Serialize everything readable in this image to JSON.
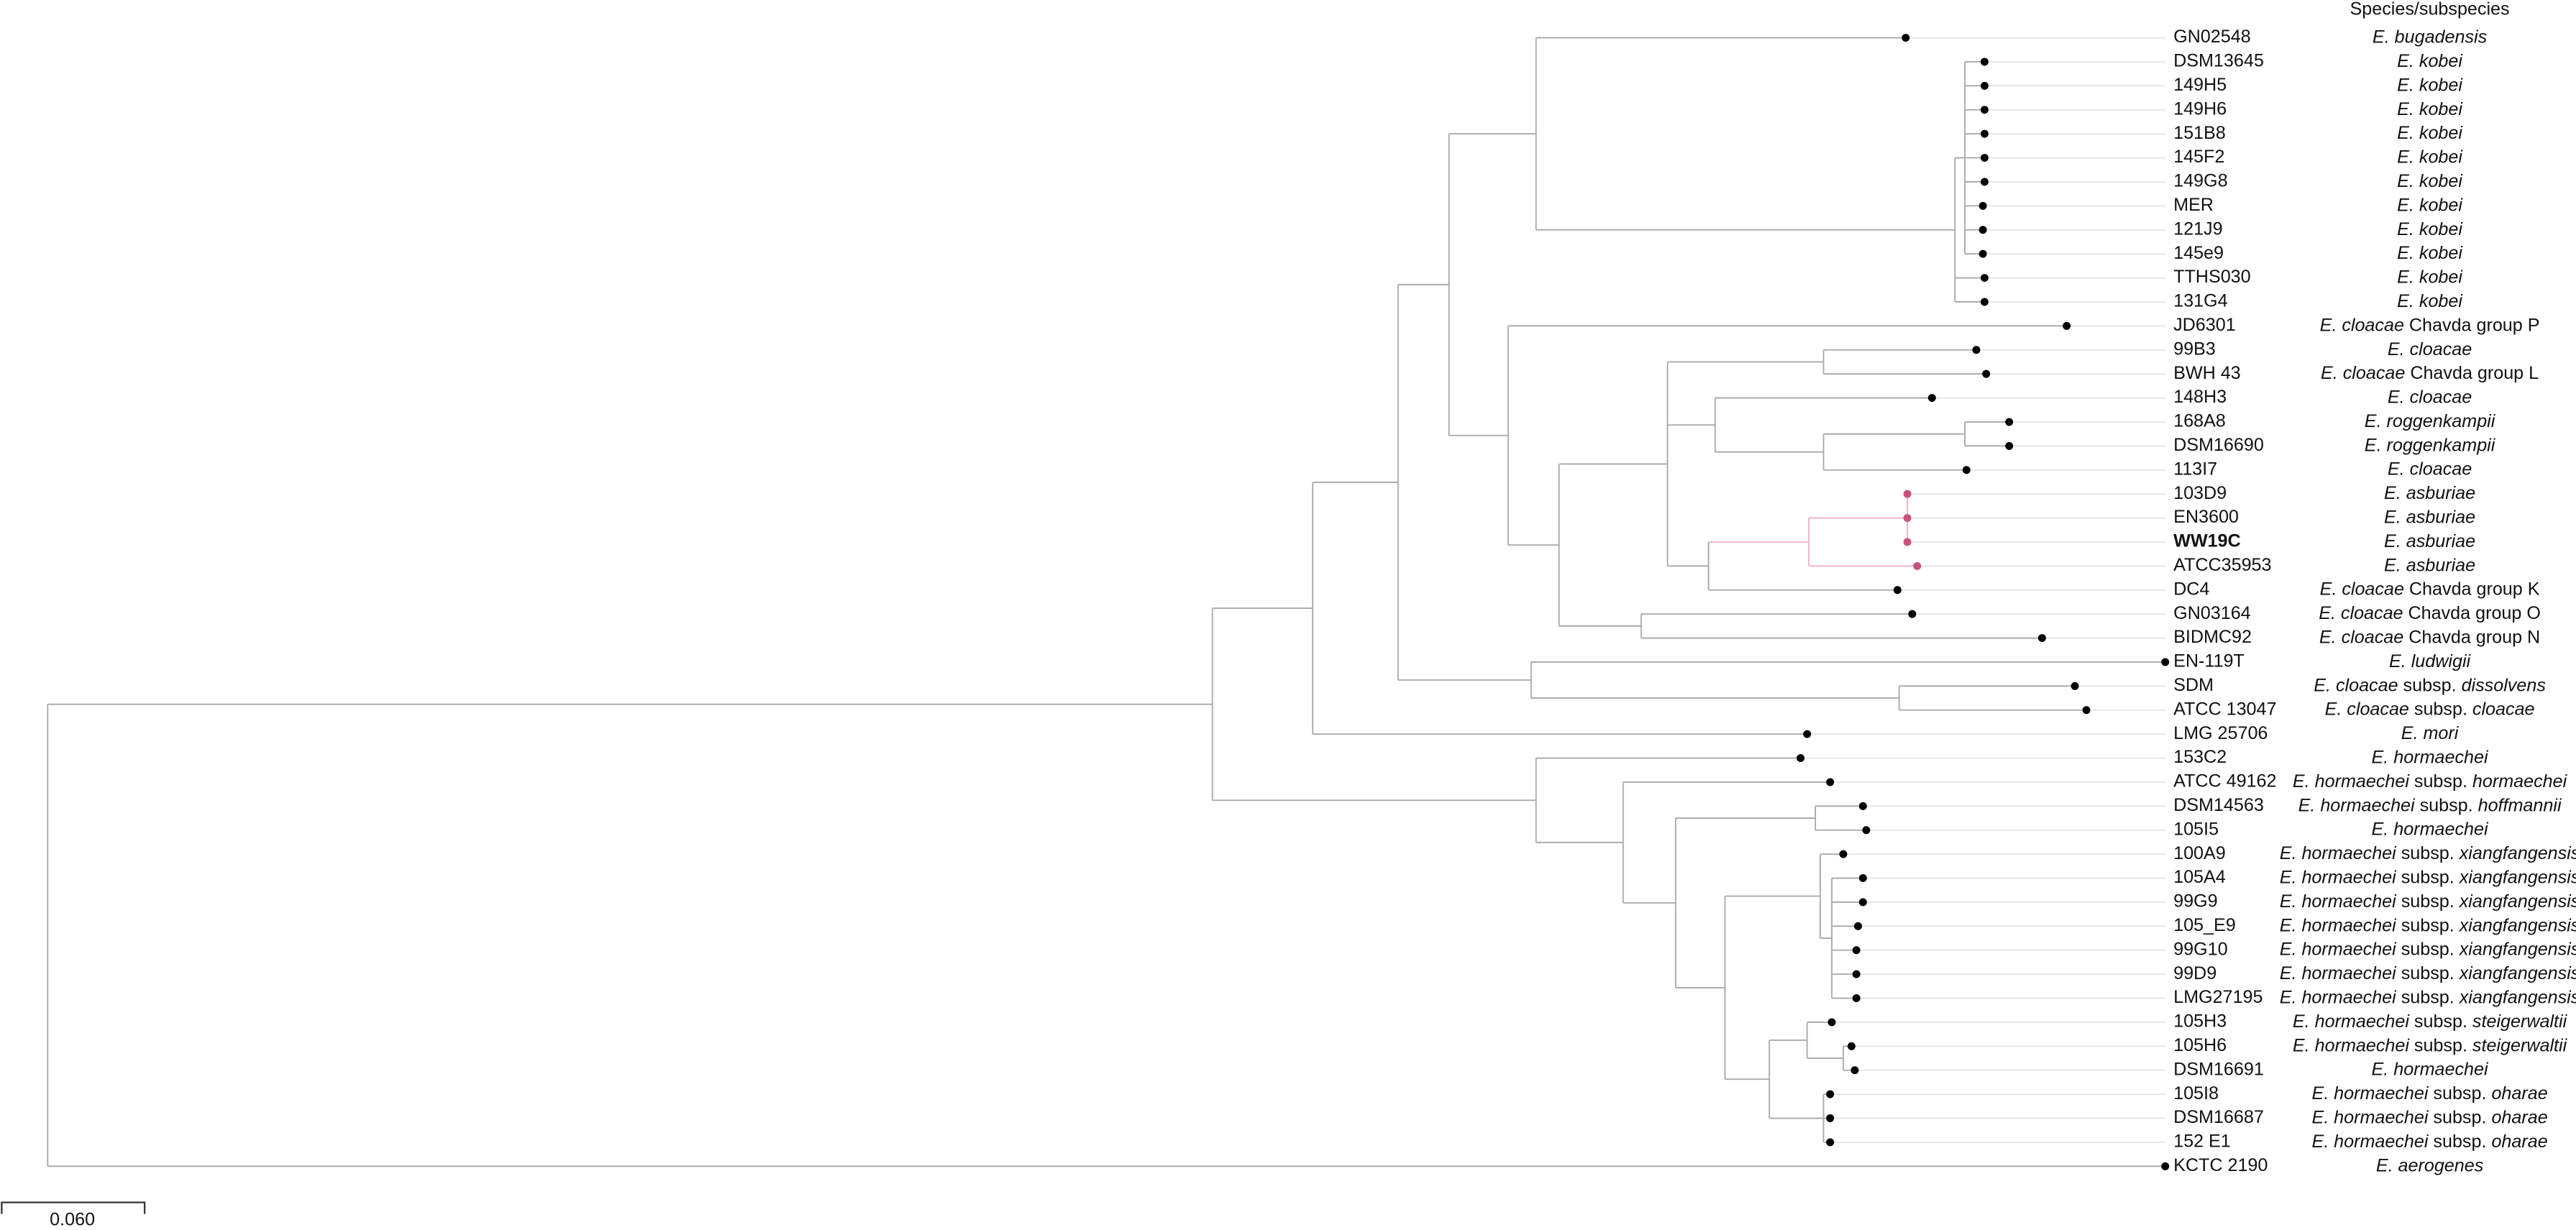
{
  "header": {
    "title": "Species/subspecies"
  },
  "leaves": [
    {
      "label": "GN02548",
      "species": [
        "E. bugadensis"
      ]
    },
    {
      "label": "DSM13645",
      "species": [
        "E. kobei"
      ]
    },
    {
      "label": "149H5",
      "species": [
        "E. kobei"
      ]
    },
    {
      "label": "149H6",
      "species": [
        "E. kobei"
      ]
    },
    {
      "label": "151B8",
      "species": [
        "E. kobei"
      ]
    },
    {
      "label": "145F2",
      "species": [
        "E. kobei"
      ]
    },
    {
      "label": "149G8",
      "species": [
        "E. kobei"
      ]
    },
    {
      "label": "MER",
      "species": [
        "E. kobei"
      ]
    },
    {
      "label": "121J9",
      "species": [
        "E. kobei"
      ]
    },
    {
      "label": "145e9",
      "species": [
        "E. kobei"
      ]
    },
    {
      "label": "TTHS030",
      "species": [
        "E. kobei"
      ]
    },
    {
      "label": "131G4",
      "species": [
        "E. kobei"
      ]
    },
    {
      "label": "JD6301",
      "species": [
        "E. cloacae",
        "Chavda group P"
      ]
    },
    {
      "label": "99B3",
      "species": [
        "E. cloacae"
      ]
    },
    {
      "label": "BWH 43",
      "species": [
        "E. cloacae",
        "Chavda group L"
      ]
    },
    {
      "label": "148H3",
      "species": [
        "E. cloacae"
      ]
    },
    {
      "label": "168A8",
      "species": [
        "E. roggenkampii"
      ]
    },
    {
      "label": "DSM16690",
      "species": [
        "E. roggenkampii"
      ]
    },
    {
      "label": "113I7",
      "species": [
        "E. cloacae"
      ]
    },
    {
      "label": "103D9",
      "species": [
        "E. asburiae"
      ],
      "color": "#c8386f"
    },
    {
      "label": "EN3600",
      "species": [
        "E. asburiae"
      ],
      "color": "#c8386f"
    },
    {
      "label": "WW19C",
      "species": [
        "E. asburiae"
      ],
      "color": "#c8386f",
      "bold": true
    },
    {
      "label": "ATCC35953",
      "species": [
        "E. asburiae"
      ],
      "color": "#c8386f"
    },
    {
      "label": "DC4",
      "species": [
        "E. cloacae",
        "Chavda group K"
      ]
    },
    {
      "label": "GN03164",
      "species": [
        "E. cloacae",
        "Chavda group O"
      ]
    },
    {
      "label": "BIDMC92",
      "species": [
        "E. cloacae",
        "Chavda group N"
      ]
    },
    {
      "label": "EN-119T",
      "species": [
        "E. ludwigii"
      ]
    },
    {
      "label": "SDM",
      "species": [
        "E. cloacae",
        "subsp.",
        "dissolvens"
      ]
    },
    {
      "label": "ATCC 13047",
      "species": [
        "E. cloacae",
        "subsp.",
        "cloacae"
      ]
    },
    {
      "label": "LMG 25706",
      "species": [
        "E. mori"
      ]
    },
    {
      "label": "153C2",
      "species": [
        "E. hormaechei"
      ]
    },
    {
      "label": "ATCC 49162",
      "species": [
        "E. hormaechei",
        "subsp.",
        "hormaechei"
      ]
    },
    {
      "label": "DSM14563",
      "species": [
        "E. hormaechei",
        "subsp.",
        "hoffmannii"
      ]
    },
    {
      "label": "105I5",
      "species": [
        "E. hormaechei"
      ]
    },
    {
      "label": "100A9",
      "species": [
        "E. hormaechei",
        "subsp.",
        "xiangfangensis"
      ]
    },
    {
      "label": "105A4",
      "species": [
        "E. hormaechei",
        "subsp.",
        "xiangfangensis"
      ]
    },
    {
      "label": "99G9",
      "species": [
        "E. hormaechei",
        "subsp.",
        "xiangfangensis"
      ]
    },
    {
      "label": "105_E9",
      "species": [
        "E. hormaechei",
        "subsp.",
        "xiangfangensis"
      ]
    },
    {
      "label": "99G10",
      "species": [
        "E. hormaechei",
        "subsp.",
        "xiangfangensis"
      ]
    },
    {
      "label": "99D9",
      "species": [
        "E. hormaechei",
        "subsp.",
        "xiangfangensis"
      ]
    },
    {
      "label": "LMG27195",
      "species": [
        "E. hormaechei",
        "subsp.",
        "xiangfangensis"
      ]
    },
    {
      "label": "105H3",
      "species": [
        "E. hormaechei",
        "subsp.",
        "steigerwaltii"
      ]
    },
    {
      "label": "105H6",
      "species": [
        "E. hormaechei",
        "subsp.",
        "steigerwaltii"
      ]
    },
    {
      "label": "DSM16691",
      "species": [
        "E. hormaechei"
      ]
    },
    {
      "label": "105I8",
      "species": [
        "E. hormaechei",
        "subsp.",
        "oharae"
      ]
    },
    {
      "label": "DSM16687",
      "species": [
        "E. hormaechei",
        "subsp.",
        "oharae"
      ]
    },
    {
      "label": "152 E1",
      "species": [
        "E. hormaechei",
        "subsp.",
        "oharae"
      ]
    },
    {
      "label": "KCTC 2190",
      "species": [
        "E. aerogenes"
      ]
    }
  ],
  "scale_bar": {
    "label": "0.060"
  }
}
